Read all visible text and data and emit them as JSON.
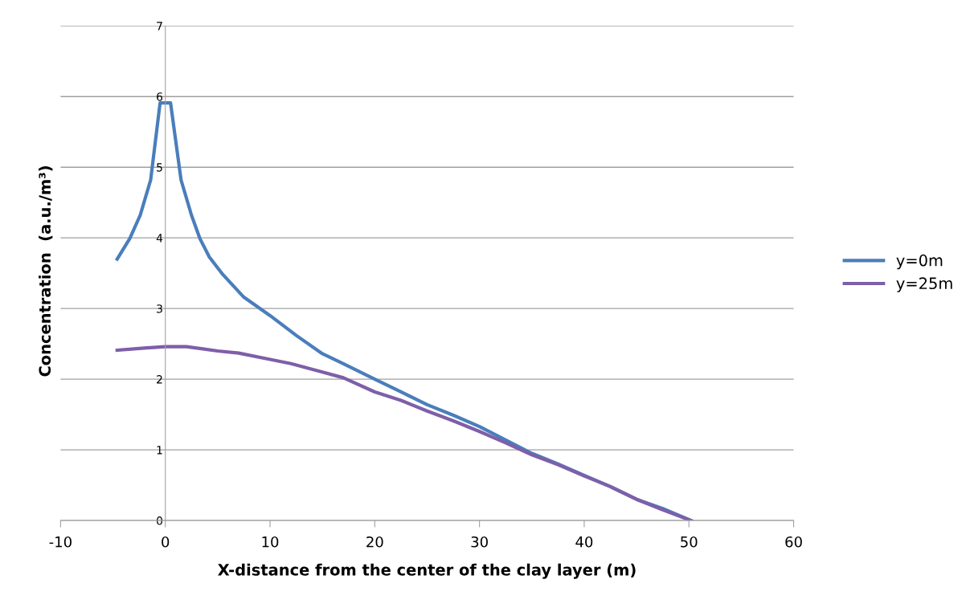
{
  "chart_data": {
    "type": "line",
    "xlabel": "X-distance from the center of the clay layer (m)",
    "ylabel": "Concentration  (a.u./m³)",
    "xlim": [
      -10,
      60
    ],
    "xticks": [
      -10,
      0,
      10,
      20,
      30,
      40,
      50,
      60
    ],
    "ylim": [
      0,
      7
    ],
    "yticks": [
      0,
      1,
      2,
      3,
      4,
      5,
      6,
      7
    ],
    "grid": "y",
    "legend": "right",
    "marker": "none",
    "line_style": "solid",
    "series": [
      {
        "name": "y=0m",
        "color": "#4a7ebb",
        "x": [
          -4.6,
          -3.4,
          -2.4,
          -1.4,
          -0.5,
          0.5,
          1.5,
          2.5,
          3.3,
          4.2,
          5.5,
          7.5,
          10,
          12.5,
          15,
          17,
          20,
          22.5,
          25,
          27.5,
          30,
          32.5,
          35,
          37.5,
          40,
          42.5,
          45,
          47.5,
          50.2
        ],
        "values": [
          3.7,
          3.99,
          4.32,
          4.82,
          5.91,
          5.91,
          4.82,
          4.32,
          3.99,
          3.73,
          3.48,
          3.16,
          2.9,
          2.62,
          2.36,
          2.22,
          2.0,
          1.82,
          1.64,
          1.49,
          1.33,
          1.14,
          0.95,
          0.8,
          0.64,
          0.48,
          0.3,
          0.17,
          0
        ]
      },
      {
        "name": "y=25m",
        "color": "#7e5fa8",
        "x": [
          -4.6,
          -2,
          0,
          2,
          5,
          7,
          10,
          12,
          15,
          17,
          20,
          22.5,
          25,
          27.5,
          30,
          32.5,
          35,
          37.5,
          40,
          42.5,
          45,
          47.5,
          50.2
        ],
        "values": [
          2.41,
          2.44,
          2.46,
          2.46,
          2.4,
          2.37,
          2.28,
          2.22,
          2.1,
          2.02,
          1.82,
          1.7,
          1.55,
          1.41,
          1.26,
          1.1,
          0.93,
          0.79,
          0.63,
          0.48,
          0.3,
          0.15,
          0
        ]
      }
    ]
  }
}
